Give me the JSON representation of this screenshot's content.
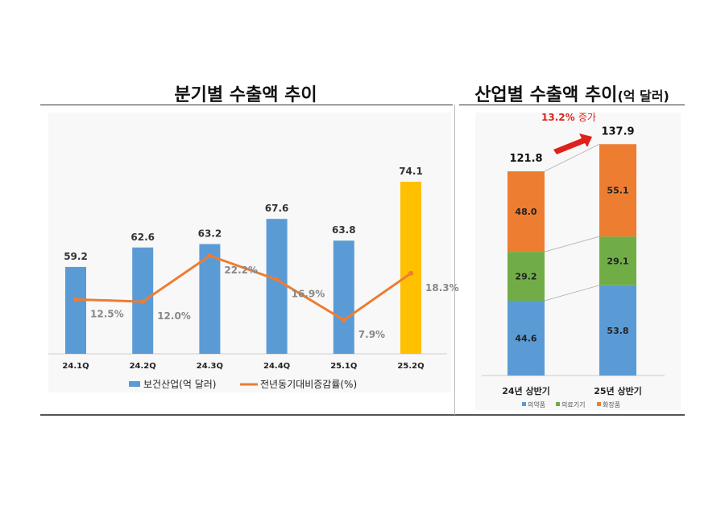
{
  "chart_data": [
    {
      "type": "bar+line",
      "title": "분기별 수출액 추이",
      "categories": [
        "24.1Q",
        "24.2Q",
        "24.3Q",
        "24.4Q",
        "25.1Q",
        "25.2Q"
      ],
      "series": [
        {
          "name": "보건산업(억 달러)",
          "type": "bar",
          "values": [
            59.2,
            62.6,
            63.2,
            67.6,
            63.8,
            74.1
          ],
          "labels": [
            "59.2",
            "62.6",
            "63.2",
            "67.6",
            "63.8",
            "74.1"
          ],
          "colors": [
            "#5b9bd5",
            "#5b9bd5",
            "#5b9bd5",
            "#5b9bd5",
            "#5b9bd5",
            "#ffc000"
          ]
        },
        {
          "name": "전년동기대비증감률(%)",
          "type": "line",
          "values": [
            12.5,
            12.0,
            22.2,
            16.9,
            7.9,
            18.3
          ],
          "labels": [
            "12.5%",
            "12.0%",
            "22.2%",
            "16.9%",
            "7.9%",
            "18.3%"
          ],
          "color": "#ed7d31"
        }
      ],
      "legend": "bottom",
      "grid": false
    },
    {
      "type": "stacked-bar",
      "title": "산업별 수출액 추이",
      "title_unit": "(억 달러)",
      "categories": [
        "24년 상반기",
        "25년 상반기"
      ],
      "totals": [
        "121.8",
        "137.9"
      ],
      "series": [
        {
          "name": "의약품",
          "values": [
            44.6,
            53.8
          ],
          "labels": [
            "44.6",
            "53.8"
          ],
          "color": "#5b9bd5"
        },
        {
          "name": "의료기기",
          "values": [
            29.2,
            29.1
          ],
          "labels": [
            "29.2",
            "29.1"
          ],
          "color": "#70ad47"
        },
        {
          "name": "화장품",
          "values": [
            48.0,
            55.1
          ],
          "labels": [
            "48.0",
            "55.1"
          ],
          "color": "#ed7d31"
        }
      ],
      "annotation": {
        "value": "13.2%",
        "text": "증가"
      },
      "legend": "bottom"
    }
  ]
}
